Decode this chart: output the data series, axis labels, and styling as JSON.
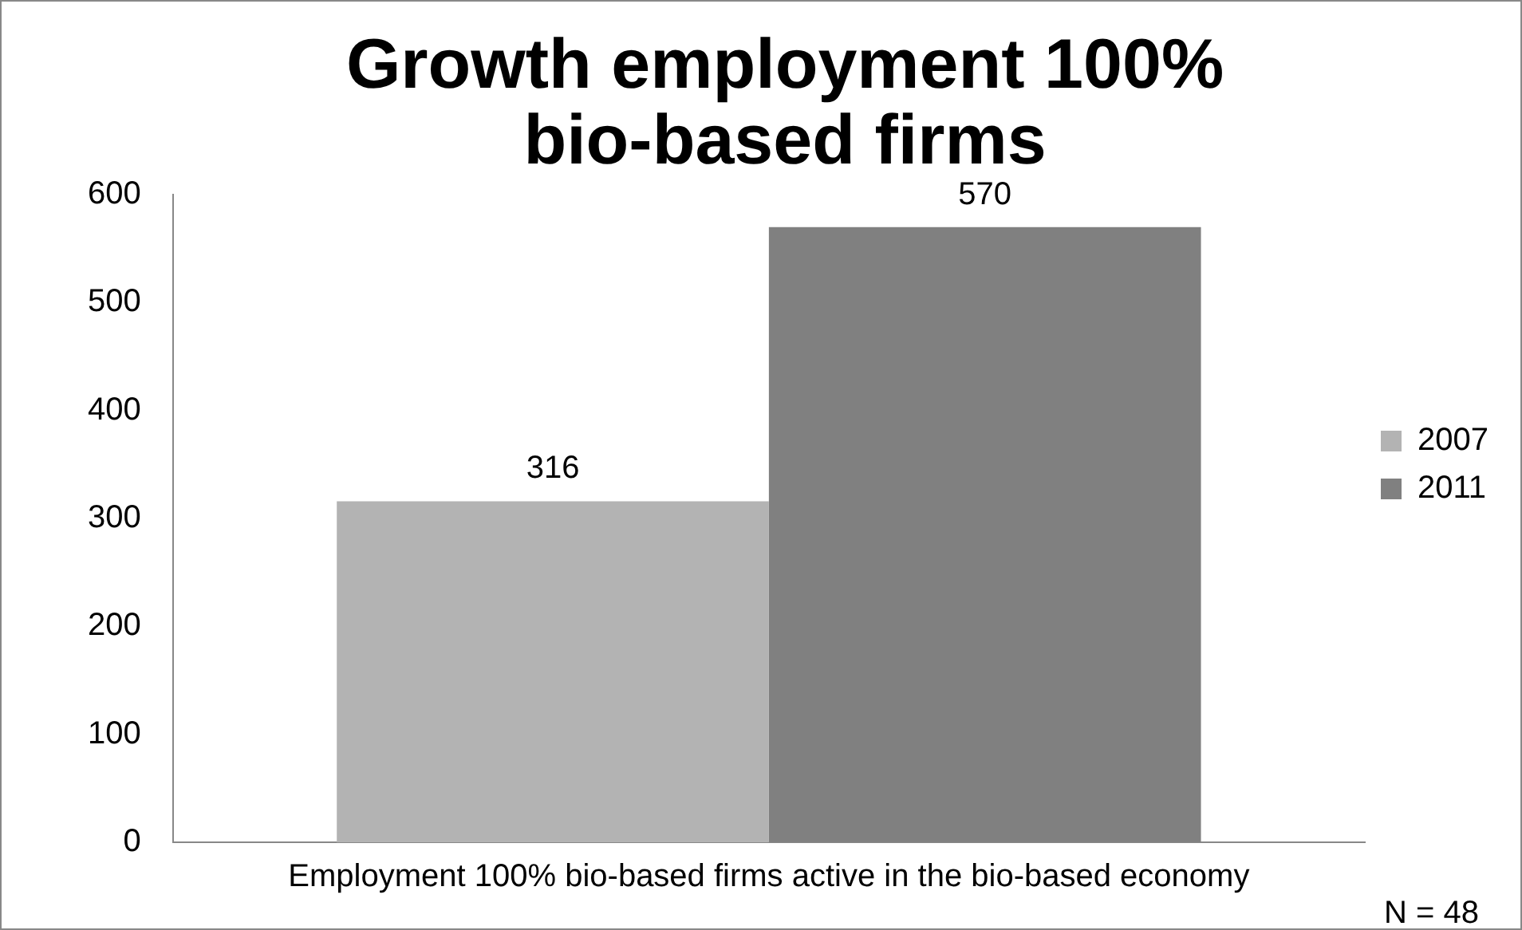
{
  "chart_data": {
    "type": "bar",
    "title": "Growth employment 100% bio-based firms",
    "categories": [
      "Employment 100% bio-based firms active in the bio-based economy"
    ],
    "series": [
      {
        "name": "2007",
        "color": "#b3b3b3",
        "values": [
          316
        ]
      },
      {
        "name": "2011",
        "color": "#808080",
        "values": [
          570
        ]
      }
    ],
    "ylim": [
      0,
      600
    ],
    "yticks": [
      0,
      100,
      200,
      300,
      400,
      500,
      600
    ],
    "grid": false,
    "legend": "right",
    "data_labels": true,
    "annotations": [
      "N = 48"
    ]
  }
}
